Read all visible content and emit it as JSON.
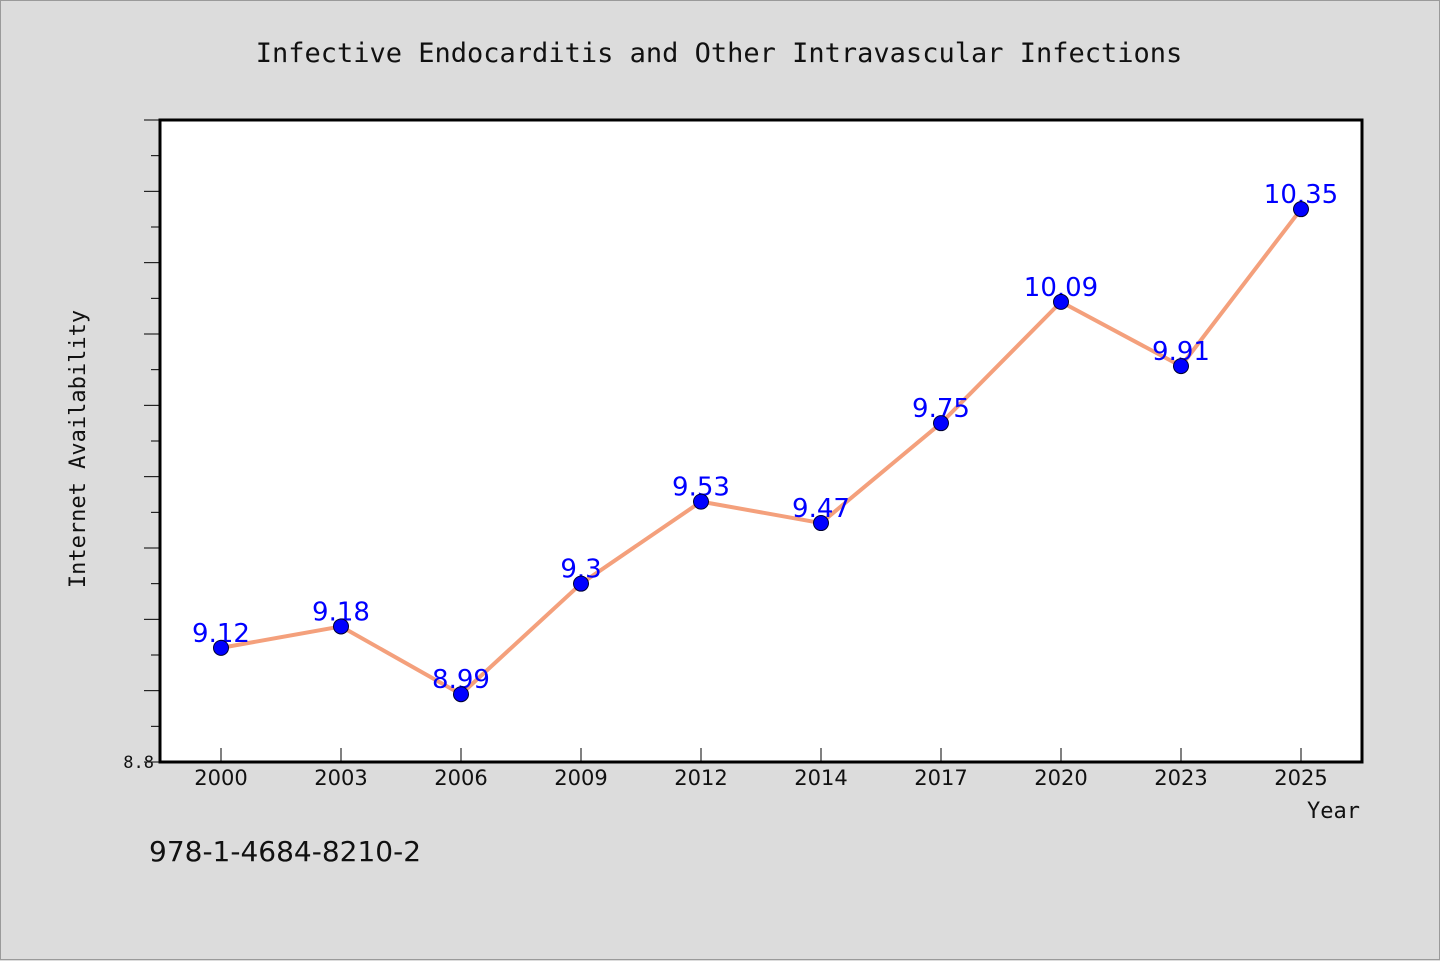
{
  "chart_data": {
    "type": "line",
    "title": "Infective Endocarditis and Other Intravascular Infections",
    "xlabel": "Year",
    "ylabel": "Internet Availability",
    "categories": [
      "2000",
      "2003",
      "2006",
      "2009",
      "2012",
      "2014",
      "2017",
      "2020",
      "2023",
      "2025"
    ],
    "series": [
      {
        "values": [
          9.12,
          9.18,
          8.99,
          9.3,
          9.53,
          9.47,
          9.75,
          10.09,
          9.91,
          10.35
        ],
        "data_labels": [
          "9.12",
          "9.18",
          "8.99",
          "9.3",
          "9.53",
          "9.47",
          "9.75",
          "10.09",
          "9.91",
          "10.35"
        ]
      }
    ],
    "y_tick_labels": [
      "8.8"
    ],
    "ylim": [
      8.8,
      10.6
    ],
    "grid": false,
    "legend": "none",
    "colors": {
      "line": "#f4a07c",
      "marker": "#0000ff",
      "data_label": "#0000ff",
      "plot_background": "#ffffff",
      "figure_background": "#dcdcdc"
    }
  },
  "footer": {
    "isbn": "978-1-4684-8210-2"
  }
}
